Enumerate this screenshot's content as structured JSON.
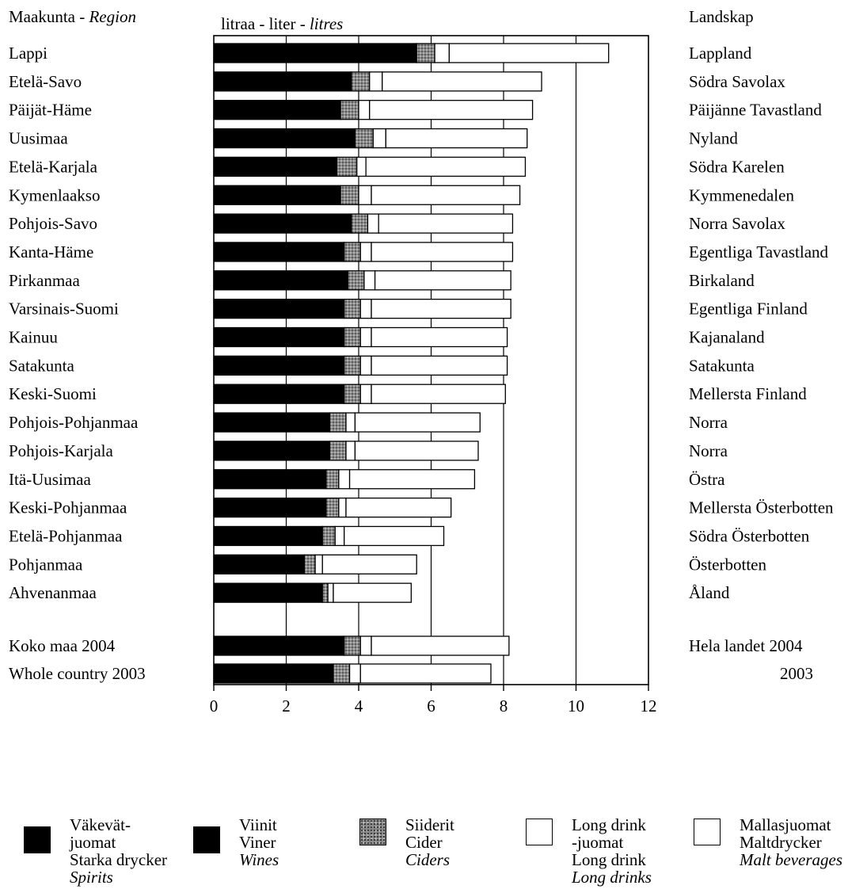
{
  "header": {
    "left_title": "Maakunta - ",
    "left_title_italic": "Region",
    "center_title": "litraa - liter - ",
    "center_title_italic": "litres",
    "right_title": "Landskap"
  },
  "colors": {
    "spirits": "#000000",
    "wines": "#000000",
    "ciders": "#8a8a8a",
    "long_drinks": "#ffffff",
    "malt": "#ffffff",
    "grid": "#000000"
  },
  "chart_data": {
    "type": "bar",
    "orientation": "horizontal",
    "stacked": true,
    "xlim": [
      0,
      12
    ],
    "x_ticks": [
      "0",
      "2",
      "4",
      "6",
      "8",
      "10",
      "12"
    ],
    "grid": true,
    "series": [
      {
        "key": "spirits_wines"
      },
      {
        "key": "ciders"
      },
      {
        "key": "long_drinks"
      },
      {
        "key": "malt"
      }
    ],
    "rows": [
      {
        "left": "Lappi",
        "right": "Lappland",
        "values": [
          5.6,
          0.5,
          0.4,
          4.4
        ]
      },
      {
        "left": "Etelä-Savo",
        "right": "Södra Savolax",
        "values": [
          3.8,
          0.5,
          0.35,
          4.4
        ]
      },
      {
        "left": "Päijät-Häme",
        "right": "Päijänne Tavastland",
        "values": [
          3.5,
          0.5,
          0.3,
          4.5
        ]
      },
      {
        "left": "Uusimaa",
        "right": "Nyland",
        "values": [
          3.9,
          0.5,
          0.35,
          3.9
        ]
      },
      {
        "left": "Etelä-Karjala",
        "right": "Södra Karelen",
        "values": [
          3.4,
          0.55,
          0.25,
          4.4
        ]
      },
      {
        "left": "Kymenlaakso",
        "right": "Kymmenedalen",
        "values": [
          3.5,
          0.5,
          0.35,
          4.1
        ]
      },
      {
        "left": "Pohjois-Savo",
        "right": "Norra Savolax",
        "values": [
          3.8,
          0.45,
          0.3,
          3.7
        ]
      },
      {
        "left": "Kanta-Häme",
        "right": "Egentliga Tavastland",
        "values": [
          3.6,
          0.45,
          0.3,
          3.9
        ]
      },
      {
        "left": "Pirkanmaa",
        "right": "Birkaland",
        "values": [
          3.7,
          0.45,
          0.3,
          3.75
        ]
      },
      {
        "left": "Varsinais-Suomi",
        "right": "Egentliga Finland",
        "values": [
          3.6,
          0.45,
          0.3,
          3.85
        ]
      },
      {
        "left": "Kainuu",
        "right": "Kajanaland",
        "values": [
          3.6,
          0.45,
          0.3,
          3.75
        ]
      },
      {
        "left": "Satakunta",
        "right": "Satakunta",
        "values": [
          3.6,
          0.45,
          0.3,
          3.75
        ]
      },
      {
        "left": "Keski-Suomi",
        "right": "Mellersta Finland",
        "values": [
          3.6,
          0.45,
          0.3,
          3.7
        ]
      },
      {
        "left": "Pohjois-Pohjanmaa",
        "right": "Norra",
        "values": [
          3.2,
          0.45,
          0.25,
          3.45
        ]
      },
      {
        "left": "Pohjois-Karjala",
        "right": "Norra",
        "values": [
          3.2,
          0.45,
          0.25,
          3.4
        ]
      },
      {
        "left": "Itä-Uusimaa",
        "right": "Östra",
        "values": [
          3.1,
          0.35,
          0.3,
          3.45
        ]
      },
      {
        "left": "Keski-Pohjanmaa",
        "right": "Mellersta Österbotten",
        "values": [
          3.1,
          0.35,
          0.2,
          2.9
        ]
      },
      {
        "left": "Etelä-Pohjanmaa",
        "right": "Södra Österbotten",
        "values": [
          3.0,
          0.35,
          0.25,
          2.75
        ]
      },
      {
        "left": "Pohjanmaa",
        "right": "Österbotten",
        "values": [
          2.5,
          0.3,
          0.2,
          2.6
        ]
      },
      {
        "left": "Ahvenanmaa",
        "right": "Åland",
        "values": [
          3.0,
          0.15,
          0.15,
          2.15
        ]
      },
      {
        "left": "Koko maa 2004",
        "right": "Hela landet 2004",
        "values": [
          3.6,
          0.45,
          0.3,
          3.8
        ]
      },
      {
        "left": "Whole country 2003",
        "right": "2003",
        "values": [
          3.3,
          0.45,
          0.3,
          3.6
        ]
      }
    ]
  },
  "legend": [
    {
      "key": "spirits",
      "lines": [
        "Väkevät-",
        "juomat",
        "Starka drycker"
      ],
      "italic_line": "Spirits"
    },
    {
      "key": "wines",
      "lines": [
        "Viinit",
        "Viner"
      ],
      "italic_line": "Wines"
    },
    {
      "key": "ciders",
      "lines": [
        "Siiderit",
        "Cider"
      ],
      "italic_line": "Ciders"
    },
    {
      "key": "long_drinks",
      "lines": [
        "Long drink",
        "-juomat",
        "Long drink"
      ],
      "italic_line": "Long drinks"
    },
    {
      "key": "malt",
      "lines": [
        "Mallasjuomat",
        "Maltdrycker"
      ],
      "italic_line": "Malt beverages"
    }
  ]
}
